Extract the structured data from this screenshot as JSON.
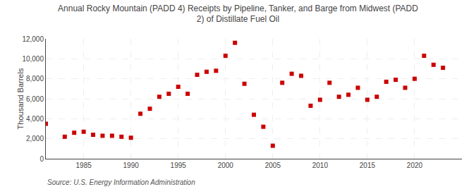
{
  "chart_data": {
    "type": "scatter",
    "title": "Annual Rocky Mountain (PADD 4) Receipts by Pipeline, Tanker, and Barge from Midwest (PADD\n2) of Distillate Fuel Oil",
    "ylabel": "Thousand Barrels",
    "annotations": [
      "Source: U.S. Energy Information Administration"
    ],
    "color": "#cc0000",
    "marker": "square",
    "grid": true,
    "xlim": [
      1981,
      2025
    ],
    "xticks": [
      1985,
      1990,
      1995,
      2000,
      2005,
      2010,
      2015,
      2020
    ],
    "ylim": [
      0,
      12000
    ],
    "yticks": [
      0,
      {
        "value": 2000,
        "label": "2,000"
      },
      {
        "value": 4000,
        "label": "4,000"
      },
      {
        "value": 6000,
        "label": "6,000"
      },
      {
        "value": 8000,
        "label": "8,000"
      },
      {
        "value": 10000,
        "label": "10,000"
      },
      {
        "value": 12000,
        "label": "12,000"
      }
    ],
    "x": [
      1981,
      1983,
      1984,
      1985,
      1986,
      1987,
      1988,
      1989,
      1990,
      1991,
      1992,
      1993,
      1994,
      1995,
      1996,
      1997,
      1998,
      1999,
      2000,
      2001,
      2002,
      2003,
      2004,
      2005,
      2006,
      2007,
      2008,
      2009,
      2010,
      2011,
      2012,
      2013,
      2014,
      2015,
      2016,
      2017,
      2018,
      2019,
      2020,
      2021,
      2022,
      2023
    ],
    "values": [
      3500,
      2200,
      2600,
      2700,
      2400,
      2300,
      2300,
      2200,
      2100,
      4500,
      5000,
      6200,
      6500,
      7200,
      6500,
      8400,
      8700,
      8800,
      10300,
      11600,
      7500,
      4400,
      3200,
      1300,
      7600,
      8500,
      8300,
      5300,
      5900,
      7600,
      6200,
      6400,
      7100,
      5900,
      6200,
      7700,
      7900,
      7100,
      8000,
      10300,
      9400,
      9100
    ]
  }
}
